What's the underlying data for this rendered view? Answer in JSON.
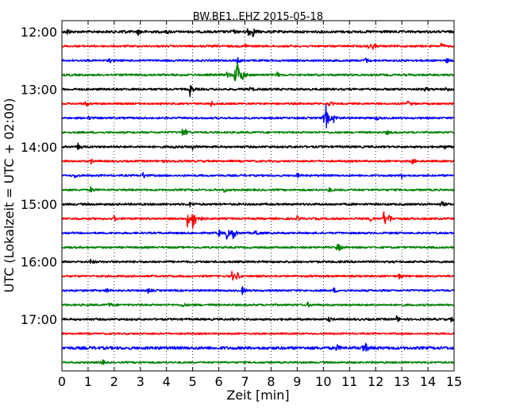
{
  "chart_data": {
    "type": "line",
    "title": "BW.BE1..EHZ 2015-05-18",
    "xlabel": "Zeit  [min]",
    "ylabel": "UTC (Lokalzeit = UTC + 02:00)",
    "xlim": [
      0,
      15
    ],
    "x_ticks": [
      "0",
      "1",
      "2",
      "3",
      "4",
      "5",
      "6",
      "7",
      "8",
      "9",
      "10",
      "11",
      "12",
      "13",
      "14",
      "15"
    ],
    "y_tick_labels": [
      "12:00",
      "13:00",
      "14:00",
      "15:00",
      "16:00",
      "17:00"
    ],
    "y_tick_rows": [
      0,
      4,
      8,
      12,
      16,
      20
    ],
    "grid": true,
    "row_minutes": 15,
    "row_colors": [
      "#000000",
      "#ff0000",
      "#0000ff",
      "#008000"
    ],
    "rows": [
      {
        "start": "12:00",
        "noise": 1.5,
        "events": [
          [
            0.2,
            4
          ],
          [
            2.3,
            3
          ],
          [
            2.9,
            4
          ],
          [
            4.0,
            2
          ],
          [
            6.5,
            3
          ],
          [
            7.1,
            9
          ],
          [
            7.3,
            5
          ]
        ]
      },
      {
        "start": "12:15",
        "noise": 1.2,
        "events": [
          [
            7.0,
            3
          ],
          [
            11.7,
            4
          ],
          [
            11.9,
            3
          ],
          [
            14.5,
            4
          ]
        ]
      },
      {
        "start": "12:30",
        "noise": 1.2,
        "events": [
          [
            1.8,
            3
          ],
          [
            6.7,
            4
          ],
          [
            11.6,
            4
          ],
          [
            14.7,
            3
          ]
        ]
      },
      {
        "start": "12:45",
        "noise": 1.3,
        "events": [
          [
            6.3,
            5
          ],
          [
            6.6,
            10
          ],
          [
            6.7,
            18
          ],
          [
            6.9,
            6
          ],
          [
            8.2,
            4
          ]
        ]
      },
      {
        "start": "13:00",
        "noise": 1.3,
        "events": [
          [
            4.9,
            8
          ],
          [
            7.2,
            3
          ],
          [
            13.9,
            3
          ],
          [
            14.7,
            4
          ]
        ]
      },
      {
        "start": "13:15",
        "noise": 1.2,
        "events": [
          [
            0.9,
            4
          ],
          [
            5.7,
            3
          ],
          [
            10.2,
            3
          ],
          [
            13.2,
            4
          ]
        ]
      },
      {
        "start": "13:30",
        "noise": 1.2,
        "events": [
          [
            1.0,
            2
          ],
          [
            10.0,
            7
          ],
          [
            10.1,
            14
          ],
          [
            10.4,
            5
          ],
          [
            12.0,
            3
          ]
        ]
      },
      {
        "start": "13:45",
        "noise": 1.2,
        "events": [
          [
            4.6,
            4
          ],
          [
            4.7,
            3
          ],
          [
            12.4,
            3
          ]
        ]
      },
      {
        "start": "14:00",
        "noise": 1.3,
        "events": [
          [
            0.6,
            5
          ],
          [
            4.2,
            3
          ],
          [
            5.0,
            3
          ],
          [
            14.6,
            3
          ]
        ]
      },
      {
        "start": "14:15",
        "noise": 1.2,
        "events": [
          [
            1.1,
            3
          ],
          [
            3.8,
            3
          ],
          [
            4.2,
            3
          ],
          [
            13.4,
            4
          ]
        ]
      },
      {
        "start": "14:30",
        "noise": 1.2,
        "events": [
          [
            0.5,
            3
          ],
          [
            3.1,
            4
          ],
          [
            9.0,
            3
          ],
          [
            13.0,
            3
          ]
        ]
      },
      {
        "start": "14:45",
        "noise": 1.2,
        "events": [
          [
            1.1,
            4
          ],
          [
            6.2,
            3
          ],
          [
            10.2,
            3
          ]
        ]
      },
      {
        "start": "15:00",
        "noise": 1.3,
        "events": [
          [
            4.9,
            3
          ],
          [
            14.5,
            4
          ]
        ]
      },
      {
        "start": "15:15",
        "noise": 1.3,
        "events": [
          [
            2.0,
            3
          ],
          [
            4.8,
            10
          ],
          [
            5.0,
            22
          ],
          [
            5.2,
            6
          ],
          [
            9.0,
            3
          ],
          [
            11.8,
            3
          ],
          [
            12.3,
            12
          ],
          [
            12.5,
            5
          ]
        ]
      },
      {
        "start": "15:30",
        "noise": 1.2,
        "events": [
          [
            6.0,
            4
          ],
          [
            6.3,
            7
          ],
          [
            6.5,
            14
          ],
          [
            7.4,
            5
          ]
        ]
      },
      {
        "start": "15:45",
        "noise": 1.2,
        "events": [
          [
            10.5,
            4
          ],
          [
            10.6,
            3
          ]
        ]
      },
      {
        "start": "16:00",
        "noise": 1.3,
        "events": [
          [
            1.1,
            3
          ]
        ]
      },
      {
        "start": "16:15",
        "noise": 1.2,
        "events": [
          [
            6.5,
            6
          ],
          [
            6.7,
            5
          ],
          [
            12.9,
            4
          ]
        ]
      },
      {
        "start": "16:30",
        "noise": 1.2,
        "events": [
          [
            1.7,
            3
          ],
          [
            3.3,
            3
          ],
          [
            6.9,
            5
          ],
          [
            10.4,
            3
          ]
        ]
      },
      {
        "start": "16:45",
        "noise": 1.2,
        "events": [
          [
            1.8,
            3
          ],
          [
            4.6,
            3
          ],
          [
            9.4,
            3
          ]
        ]
      },
      {
        "start": "17:00",
        "noise": 1.3,
        "events": [
          [
            10.2,
            3
          ],
          [
            12.8,
            4
          ],
          [
            14.9,
            4
          ]
        ]
      },
      {
        "start": "17:15",
        "noise": 1.1,
        "events": []
      },
      {
        "start": "17:30",
        "noise": 1.8,
        "events": [
          [
            10.5,
            4
          ],
          [
            11.5,
            5
          ],
          [
            11.6,
            4
          ]
        ]
      },
      {
        "start": "17:45",
        "noise": 1.1,
        "events": [
          [
            1.5,
            5
          ]
        ]
      }
    ]
  }
}
